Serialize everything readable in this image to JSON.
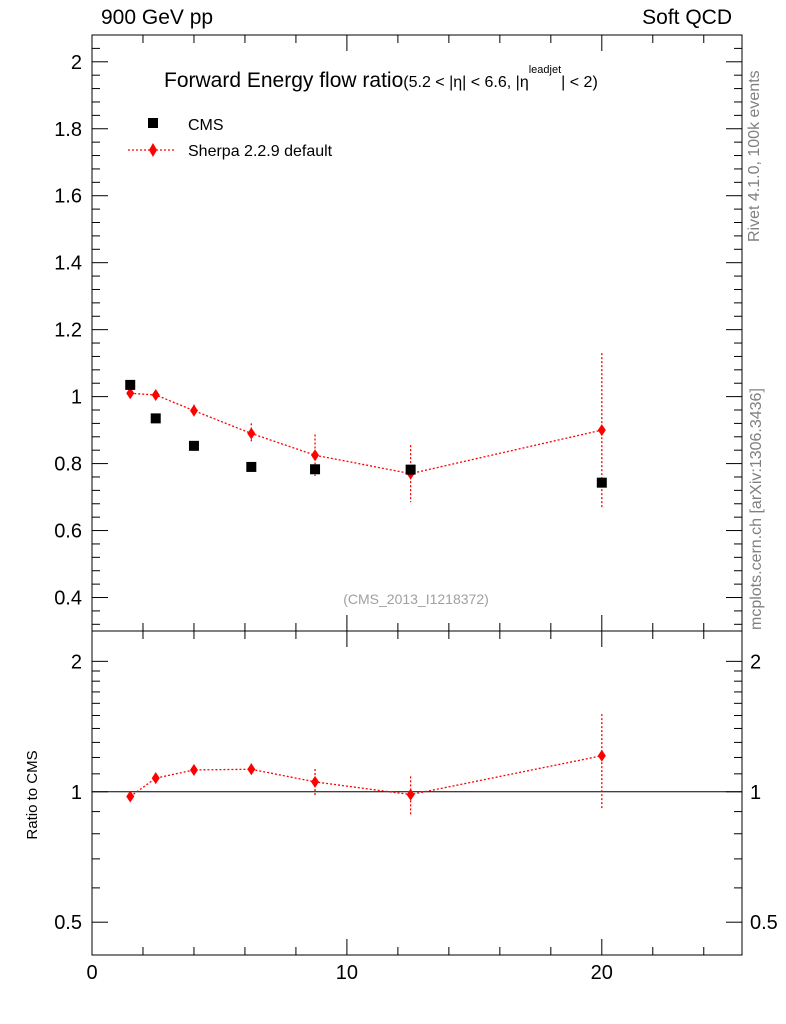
{
  "header": {
    "left": "900 GeV pp",
    "right": "Soft QCD"
  },
  "side_labels": {
    "top": "Rivet 4.1.0,  100k events",
    "bottom": "mcplots.cern.ch [arXiv:1306.3436]"
  },
  "chart_data": [
    {
      "type": "scatter",
      "panel": "main",
      "title": "Forward Energy flow ratio",
      "title_suffix_1": "(5.2 < |",
      "title_eta_1": "η",
      "title_suffix_2": "| < 6.6, |",
      "title_eta_2": "η",
      "title_sup": "leadjet",
      "title_suffix_3": "| < 2)",
      "watermark": "(CMS_2013_I1218372)",
      "xlim": [
        0,
        25.5
      ],
      "ylim": [
        0.3,
        2.08
      ],
      "yticks": [
        0.4,
        0.6,
        0.8,
        1,
        1.2,
        1.4,
        1.6,
        1.8,
        2
      ],
      "ytick_labels": [
        "0.4",
        "0.6",
        "0.8",
        "1",
        "1.2",
        "1.4",
        "1.6",
        "1.8",
        "2"
      ],
      "legend_position": "top-left",
      "series": [
        {
          "name": "CMS",
          "color": "#000000",
          "marker": "square",
          "x": [
            1.5,
            2.5,
            4.0,
            6.25,
            8.75,
            12.5,
            20.0
          ],
          "y": [
            1.035,
            0.935,
            0.853,
            0.79,
            0.783,
            0.782,
            0.743
          ],
          "yerr": [
            0.0,
            0.0,
            0.0,
            0.0,
            0.0,
            0.0,
            0.0
          ]
        },
        {
          "name": "Sherpa 2.2.9 default",
          "color": "#ff0000",
          "marker": "diamond",
          "line": "dotted",
          "x": [
            1.5,
            2.5,
            4.0,
            6.25,
            8.75,
            12.5,
            20.0
          ],
          "y": [
            1.01,
            1.005,
            0.958,
            0.89,
            0.825,
            0.77,
            0.9
          ],
          "yerr": [
            0.008,
            0.01,
            0.018,
            0.03,
            0.062,
            0.085,
            0.23
          ]
        }
      ]
    },
    {
      "type": "scatter",
      "panel": "ratio",
      "ylabel": "Ratio to CMS",
      "yscale": "log",
      "ylim": [
        0.42,
        2.35
      ],
      "yticks": [
        0.5,
        1,
        2
      ],
      "ytick_labels": [
        "0.5",
        "1",
        "2"
      ],
      "xlim": [
        0,
        25.5
      ],
      "xticks": [
        0,
        10,
        20
      ],
      "xtick_labels": [
        "0",
        "10",
        "20"
      ],
      "reference_line": 1,
      "series": [
        {
          "name": "Sherpa 2.2.9 default",
          "color": "#ff0000",
          "marker": "diamond",
          "line": "dotted",
          "x": [
            1.5,
            2.5,
            4.0,
            6.25,
            8.75,
            12.5,
            20.0
          ],
          "y": [
            0.975,
            1.075,
            1.123,
            1.127,
            1.054,
            0.985,
            1.211
          ],
          "yerr": [
            0.008,
            0.012,
            0.022,
            0.035,
            0.075,
            0.1,
            0.3
          ]
        }
      ]
    }
  ]
}
